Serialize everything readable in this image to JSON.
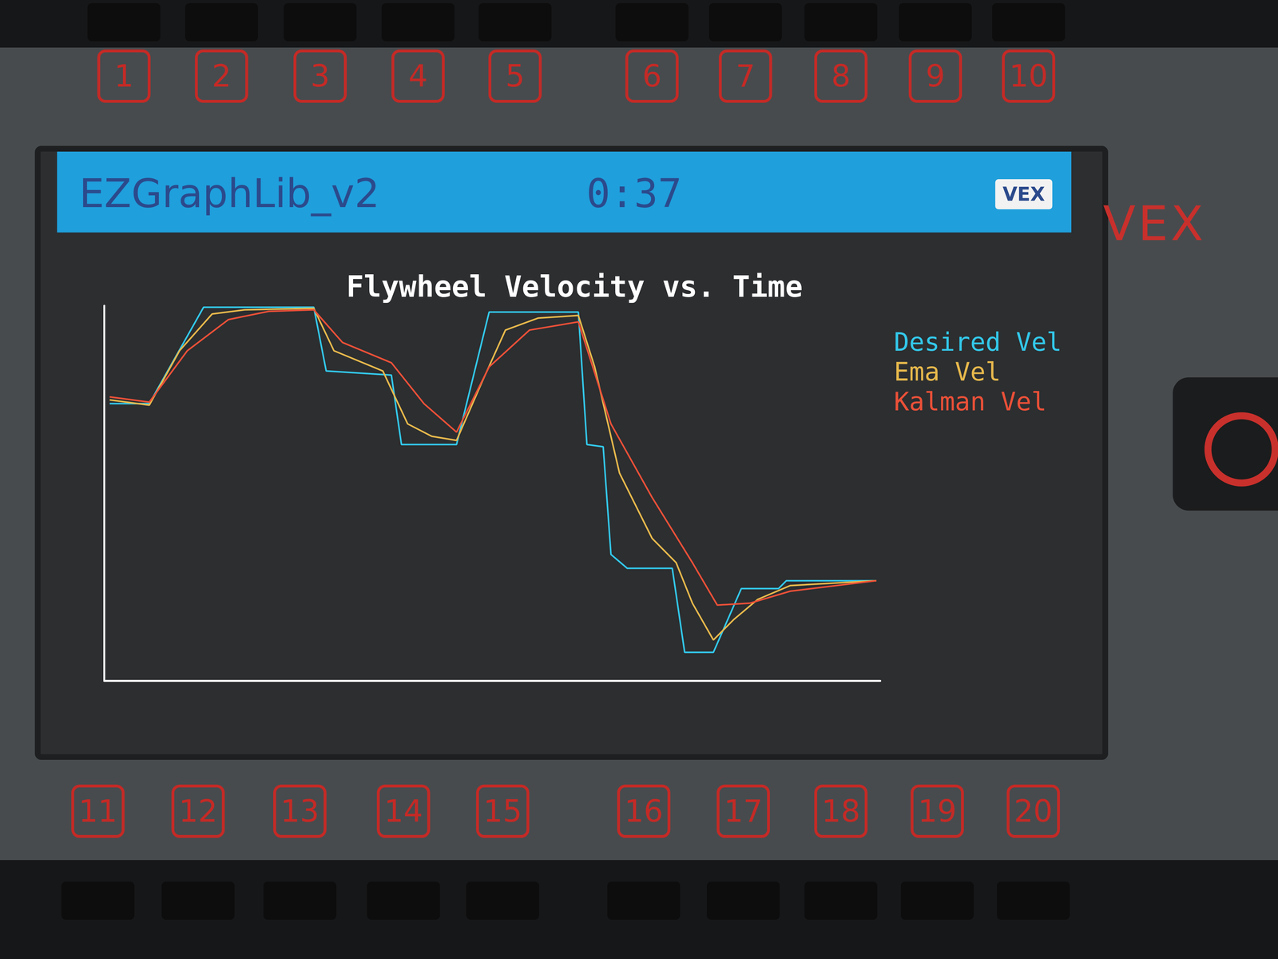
{
  "screen": {
    "app_title": "EZGraphLib_v2",
    "clock": "0:37",
    "badge": "VEX",
    "brand": "VEX",
    "ports_top": [
      1,
      2,
      3,
      4,
      5,
      6,
      7,
      8,
      9,
      10
    ],
    "ports_bottom": [
      11,
      12,
      13,
      14,
      15,
      16,
      17,
      18,
      19,
      20
    ]
  },
  "chart_data": {
    "type": "line",
    "title": "Flywheel Velocity vs. Time",
    "xlim": [
      0,
      100
    ],
    "ylim": [
      0,
      100
    ],
    "tick_labels": false,
    "grid": false,
    "legend": "upper right",
    "marker": "none",
    "series": [
      {
        "name": "Desired Vel",
        "color": "#33c8ea",
        "x": [
          0.7,
          5.8,
          12.8,
          27.0,
          28.6,
          37.0,
          38.3,
          45.4,
          49.6,
          61.1,
          62.2,
          64.3,
          65.3,
          67.4,
          73.2,
          74.8,
          78.5,
          82.1,
          86.9,
          87.9,
          99.5
        ],
        "values": [
          73.9,
          73.9,
          99.6,
          99.6,
          82.6,
          81.5,
          63.0,
          63.0,
          98.3,
          98.3,
          63.0,
          62.4,
          33.7,
          30.0,
          30.0,
          7.6,
          7.6,
          24.6,
          24.6,
          26.7,
          26.7
        ]
      },
      {
        "name": "Ema Vel",
        "color": "#e6b84c",
        "x": [
          0.7,
          5.8,
          9.7,
          13.9,
          18.1,
          27.0,
          29.6,
          35.9,
          39.1,
          42.2,
          45.4,
          48.6,
          51.7,
          55.9,
          61.1,
          63.2,
          66.4,
          70.6,
          73.7,
          75.8,
          78.5,
          81.1,
          84.2,
          88.4,
          99.5
        ],
        "values": [
          74.9,
          73.5,
          88.0,
          97.8,
          98.9,
          99.3,
          88.0,
          82.6,
          68.5,
          65.2,
          64.1,
          79.3,
          93.5,
          96.7,
          97.4,
          83.7,
          55.4,
          38.0,
          31.5,
          20.7,
          10.9,
          16.3,
          21.7,
          25.4,
          26.7
        ]
      },
      {
        "name": "Kalman Vel",
        "color": "#ea5038",
        "x": [
          0.7,
          5.8,
          10.7,
          16.0,
          21.2,
          27.0,
          30.7,
          37.0,
          41.2,
          45.4,
          49.6,
          54.8,
          61.1,
          65.3,
          70.6,
          75.8,
          79.0,
          83.2,
          88.4,
          99.5
        ],
        "values": [
          75.7,
          74.3,
          88.0,
          96.3,
          98.5,
          98.9,
          90.2,
          84.8,
          73.9,
          66.3,
          83.7,
          93.5,
          95.7,
          68.5,
          48.9,
          31.5,
          20.2,
          20.7,
          23.9,
          26.7
        ]
      }
    ]
  }
}
